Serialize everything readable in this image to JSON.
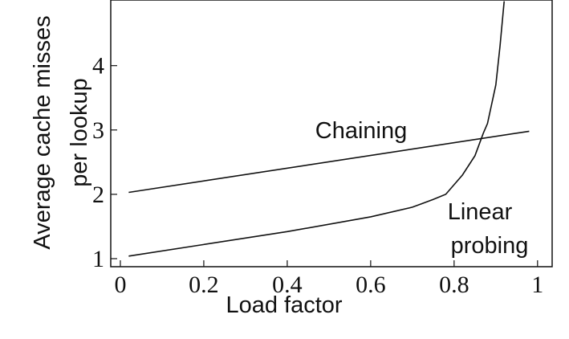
{
  "chart_data": {
    "type": "line",
    "xlabel": "Load factor",
    "ylabel": [
      "Average cache misses",
      "per lookup"
    ],
    "xlim": [
      -0.023,
      1.035
    ],
    "ylim": [
      0.875,
      5.02
    ],
    "xticks": [
      0,
      0.2,
      0.4,
      0.6,
      0.8,
      1
    ],
    "yticks": [
      1,
      2,
      3,
      4
    ],
    "color": "#111111",
    "series": [
      {
        "name": "Chaining",
        "x": [
          0.02,
          0.98
        ],
        "values": [
          2.03,
          2.98
        ]
      },
      {
        "name": "Linear probing",
        "x": [
          0.02,
          0.2,
          0.4,
          0.6,
          0.7,
          0.75,
          0.78,
          0.82,
          0.85,
          0.87,
          0.88,
          0.9,
          0.91,
          0.92
        ],
        "values": [
          1.04,
          1.22,
          1.42,
          1.65,
          1.8,
          1.92,
          2.0,
          2.3,
          2.6,
          2.95,
          3.1,
          3.7,
          4.3,
          5.0
        ]
      }
    ],
    "annotations": [
      "Chaining",
      "Linear",
      "probing"
    ]
  }
}
